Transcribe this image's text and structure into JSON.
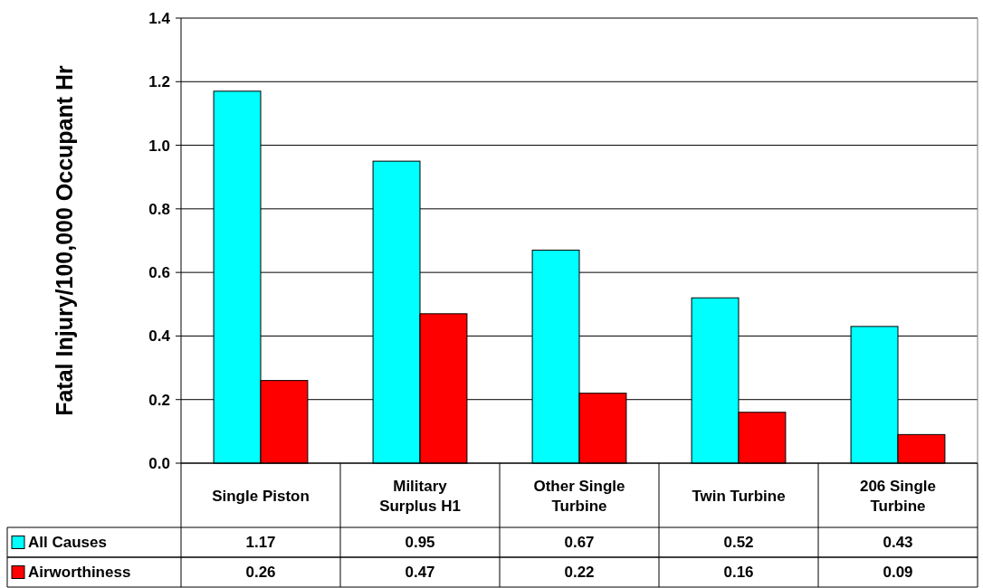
{
  "chart_data": {
    "type": "bar",
    "ylabel": "Fatal Injury/100,000 Occupant Hr",
    "categories": [
      "Single Piston",
      "Military Surplus H1",
      "Other Single Turbine",
      "Twin Turbine",
      "206 Single Turbine"
    ],
    "series": [
      {
        "name": "All Causes",
        "color": "#00ffff",
        "values": [
          1.17,
          0.95,
          0.67,
          0.52,
          0.43
        ]
      },
      {
        "name": "Airworthiness",
        "color": "#ff0000",
        "values": [
          0.26,
          0.47,
          0.22,
          0.16,
          0.09
        ]
      }
    ],
    "ylim": [
      0,
      1.4
    ],
    "yticks": [
      {
        "value": 0,
        "label": "0.0"
      },
      {
        "value": 0.2,
        "label": "0.2"
      },
      {
        "value": 0.4,
        "label": "0.4"
      },
      {
        "value": 0.6,
        "label": "0.6"
      },
      {
        "value": 0.8,
        "label": "0.8"
      },
      {
        "value": 1,
        "label": "1.0"
      },
      {
        "value": 1.2,
        "label": "1.2"
      },
      {
        "value": 1.4,
        "label": "1.4"
      }
    ],
    "grid": "y",
    "legend": "bottom",
    "data_labels": true
  }
}
